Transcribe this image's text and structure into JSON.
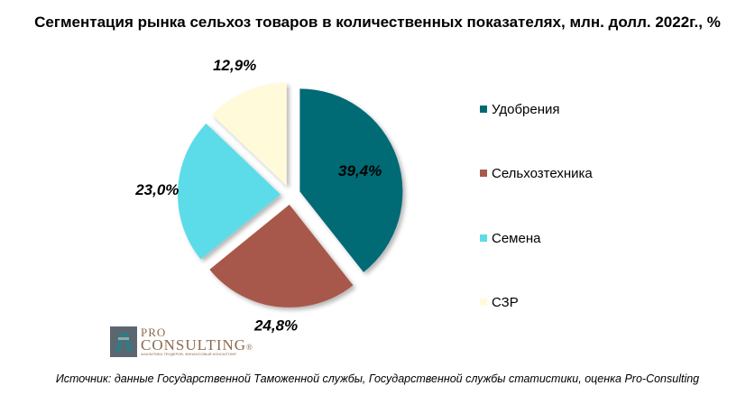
{
  "chart_data": {
    "type": "pie",
    "title": "Сегментация рынка сельхоз товаров в количественных показателях, млн. долл. 2022г., %",
    "slices": [
      {
        "label": "Удобрения",
        "value": 39.4,
        "display": "39,4%",
        "color": "#006a74"
      },
      {
        "label": "Сельхозтехника",
        "value": 24.8,
        "display": "24,8%",
        "color": "#a8594c"
      },
      {
        "label": "Семена",
        "value": 23.0,
        "display": "23,0%",
        "color": "#5cdce8"
      },
      {
        "label": "СЗР",
        "value": 12.9,
        "display": "12,9%",
        "color": "#fffada"
      }
    ],
    "legend_position": "right",
    "exploded": true
  },
  "logo": {
    "line1": "PRO",
    "line2": "CONSULTING",
    "registered": "®",
    "tagline": "АНАЛИТИКА ТЕНДЕРОВ, ФИНАНСОВЫЙ КОНСАЛТИНГ"
  },
  "source": "Источник: данные Государственной Таможенной службы, Государственной службы статистики, оценка Pro-Consulting"
}
